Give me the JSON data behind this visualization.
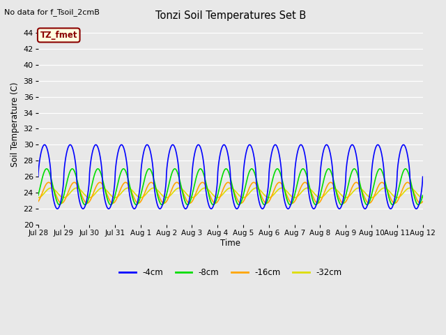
{
  "title": "Tonzi Soil Temperatures Set B",
  "no_data_label": "No data for f_Tsoil_2cmB",
  "annotation_label": "TZ_fmet",
  "ylabel": "Soil Temperature (C)",
  "xlabel": "Time",
  "ylim": [
    20,
    45
  ],
  "yticks": [
    20,
    22,
    24,
    26,
    28,
    30,
    32,
    34,
    36,
    38,
    40,
    42,
    44
  ],
  "xtick_labels": [
    "Jul 28",
    "Jul 29",
    "Jul 30",
    "Jul 31",
    "Aug 1",
    "Aug 2",
    "Aug 3",
    "Aug 4",
    "Aug 5",
    "Aug 6",
    "Aug 7",
    "Aug 8",
    "Aug 9",
    "Aug 10",
    "Aug 11",
    "Aug 12"
  ],
  "series_colors": [
    "blue",
    "#00dd00",
    "orange",
    "#dddd00"
  ],
  "series_labels": [
    "-4cm",
    "-8cm",
    "-16cm",
    "-32cm"
  ],
  "series_linewidths": [
    1.2,
    1.2,
    1.2,
    1.2
  ],
  "bg_color": "#d8d8d8",
  "plot_bg_color": "#e8e8e8",
  "n_days": 15,
  "num_points": 2000,
  "mean_4": 26.0,
  "amp_4": 4.0,
  "phase_4": 0.0,
  "mean_8": 24.75,
  "amp_8": 2.25,
  "phase_8": 0.08,
  "mean_16": 24.0,
  "amp_16": 1.3,
  "phase_16": 0.16,
  "mean_32": 24.0,
  "amp_32": 0.6,
  "phase_32": 0.25
}
